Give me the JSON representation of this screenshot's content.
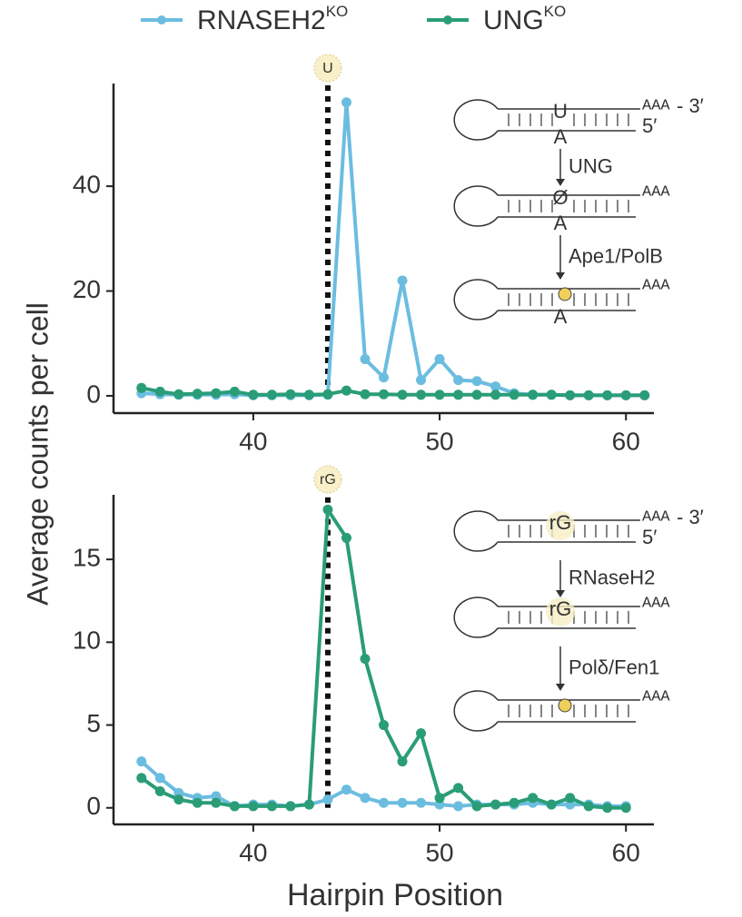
{
  "chart_data": [
    {
      "type": "line",
      "ylabel": "Average counts per cell",
      "x": [
        34,
        35,
        36,
        37,
        38,
        39,
        40,
        41,
        42,
        43,
        44,
        45,
        46,
        47,
        48,
        49,
        50,
        51,
        52,
        53,
        54,
        55,
        56,
        57,
        58,
        59,
        60,
        61
      ],
      "series": [
        {
          "name": "RNASEH2",
          "name_superscript": "KO",
          "color": "#6bbde0",
          "values": [
            0.5,
            0.3,
            0.2,
            0.2,
            0.2,
            0.3,
            0.1,
            0.1,
            0.1,
            0.1,
            0.2,
            56,
            7,
            3.5,
            22,
            3,
            7,
            3,
            2.8,
            1.8,
            0.5,
            0.2,
            0.2,
            0.1,
            0.1,
            0.1,
            0.1,
            0.1
          ]
        },
        {
          "name": "UNG",
          "name_superscript": "KO",
          "color": "#2a9d78",
          "values": [
            1.5,
            0.8,
            0.3,
            0.4,
            0.5,
            0.8,
            0.2,
            0.2,
            0.3,
            0.2,
            0.3,
            1.0,
            0.3,
            0.3,
            0.2,
            0.2,
            0.2,
            0.2,
            0.2,
            0.2,
            0.2,
            0.2,
            0.2,
            0.1,
            0.1,
            0.1,
            0.1,
            0.1
          ]
        }
      ],
      "xlim": [
        32.5,
        61.5
      ],
      "ylim": [
        -3.3,
        59.6
      ],
      "xticks": [
        40,
        50,
        60
      ],
      "yticks": [
        0,
        20,
        40
      ],
      "marker": {
        "x": 44,
        "label": "U"
      },
      "diagram": {
        "rows": [
          {
            "top": "U",
            "bottom": "A",
            "tail": "AAA",
            "end3": "- 3′",
            "end5": "5′"
          },
          {
            "top": "Ø",
            "bottom": "A",
            "tail": "AAA"
          },
          {
            "bottom": "A",
            "tail": "AAA",
            "dot": true
          }
        ],
        "enzymes": [
          "UNG",
          "Ape1/PolB"
        ]
      }
    },
    {
      "type": "line",
      "xlabel": "Hairpin Position",
      "x": [
        34,
        35,
        36,
        37,
        38,
        39,
        40,
        41,
        42,
        43,
        44,
        45,
        46,
        47,
        48,
        49,
        50,
        51,
        52,
        53,
        54,
        55,
        56,
        57,
        58,
        59,
        60
      ],
      "series": [
        {
          "color": "#6bbde0",
          "values": [
            2.8,
            1.8,
            0.9,
            0.6,
            0.7,
            0.1,
            0.2,
            0.2,
            0.1,
            0.2,
            0.5,
            1.1,
            0.6,
            0.3,
            0.3,
            0.3,
            0.2,
            0.1,
            0.2,
            0.2,
            0.2,
            0.3,
            0.2,
            0.2,
            0.2,
            0.1,
            0.1
          ]
        },
        {
          "color": "#2a9d78",
          "values": [
            1.8,
            1.0,
            0.5,
            0.3,
            0.3,
            0.1,
            0.1,
            0.1,
            0.1,
            0.2,
            18,
            16.3,
            9,
            5,
            2.8,
            4.5,
            0.6,
            1.2,
            0.1,
            0.2,
            0.3,
            0.6,
            0.2,
            0.6,
            0.1,
            0.0,
            0.0
          ]
        }
      ],
      "xlim": [
        32.5,
        61.5
      ],
      "ylim": [
        -1.0,
        18.9
      ],
      "xticks": [
        40,
        50,
        60
      ],
      "yticks": [
        0,
        5,
        10,
        15
      ],
      "marker": {
        "x": 44,
        "label": "rG"
      },
      "diagram": {
        "rows": [
          {
            "top": "rG",
            "tail": "AAA",
            "end3": "- 3′",
            "end5": "5′"
          },
          {
            "top": "rG",
            "tail": "AAA"
          },
          {
            "tail": "AAA",
            "dot": true
          }
        ],
        "enzymes": [
          "RNaseH2",
          "Polδ/Fen1"
        ]
      }
    }
  ]
}
